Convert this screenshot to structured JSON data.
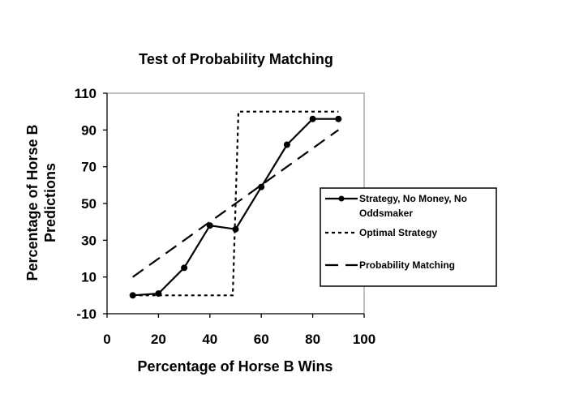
{
  "chart_data": {
    "type": "line",
    "title": "Test of Probability Matching",
    "xlabel": "Percentage of Horse B Wins",
    "ylabel": [
      "Percentage of Horse B",
      "Predictions"
    ],
    "xlim": [
      0,
      100
    ],
    "ylim": [
      -10,
      110
    ],
    "xticks": [
      0,
      20,
      40,
      60,
      80,
      100
    ],
    "yticks": [
      -10,
      10,
      30,
      50,
      70,
      90,
      110
    ],
    "grid": false,
    "legend_position": "right",
    "series": [
      {
        "name": "Strategy, No Money, No Oddsmaker",
        "legend_lines": [
          "Strategy, No Money, No",
          "Oddsmaker"
        ],
        "style": "solid-markers",
        "color": "#000000",
        "x": [
          10,
          20,
          30,
          40,
          50,
          60,
          70,
          80,
          90
        ],
        "y": [
          0,
          1,
          15,
          38,
          36,
          59,
          82,
          96,
          96
        ]
      },
      {
        "name": "Optimal Strategy",
        "legend_lines": [
          "Optimal Strategy"
        ],
        "style": "short-dash",
        "color": "#000000",
        "x": [
          10,
          48.9,
          51.1,
          90
        ],
        "y": [
          0,
          0,
          100,
          100
        ]
      },
      {
        "name": "Probability Matching",
        "legend_lines": [
          "Probability Matching"
        ],
        "style": "long-dash",
        "color": "#000000",
        "x": [
          10,
          90
        ],
        "y": [
          10,
          90
        ]
      }
    ]
  }
}
